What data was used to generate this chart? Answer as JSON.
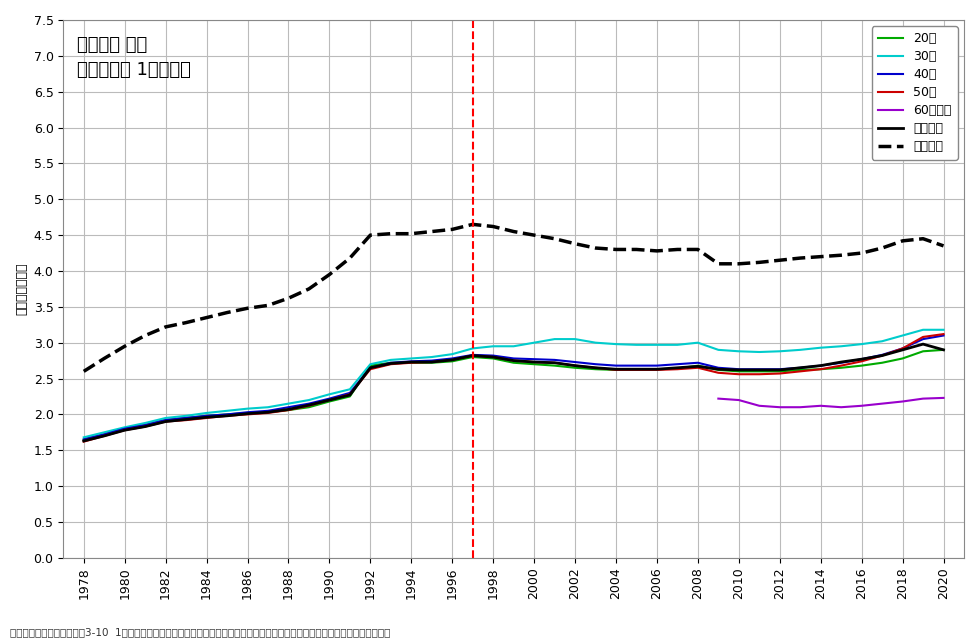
{
  "title": "平均給与 女性\n年齢階層別 1年勤続者",
  "ylabel": "金額［百万円］",
  "footnote": "「民間給与実態統計調査」3-10  1年勤続者の年齢階層別給与所得者数・給与総額・平均給与のうち、年齢階層別の平均給与の数値",
  "vline_x": 1997,
  "ylim": [
    0.0,
    7.5
  ],
  "yticks": [
    0.0,
    0.5,
    1.0,
    1.5,
    2.0,
    2.5,
    3.0,
    3.5,
    4.0,
    4.5,
    5.0,
    5.5,
    6.0,
    6.5,
    7.0,
    7.5
  ],
  "years": [
    1978,
    1979,
    1980,
    1981,
    1982,
    1983,
    1984,
    1985,
    1986,
    1987,
    1988,
    1989,
    1990,
    1991,
    1992,
    1993,
    1994,
    1995,
    1996,
    1997,
    1998,
    1999,
    2000,
    2001,
    2002,
    2003,
    2004,
    2005,
    2006,
    2007,
    2008,
    2009,
    2010,
    2011,
    2012,
    2013,
    2014,
    2015,
    2016,
    2017,
    2018,
    2019,
    2020
  ],
  "series": {
    "20代": {
      "color": "#00AA00",
      "linestyle": "-",
      "linewidth": 1.5,
      "values": [
        1.65,
        1.72,
        1.8,
        1.85,
        1.92,
        1.95,
        1.98,
        2.0,
        2.02,
        2.03,
        2.06,
        2.1,
        2.18,
        2.25,
        2.68,
        2.72,
        2.72,
        2.72,
        2.74,
        2.8,
        2.78,
        2.72,
        2.7,
        2.68,
        2.65,
        2.63,
        2.62,
        2.62,
        2.63,
        2.64,
        2.68,
        2.62,
        2.6,
        2.6,
        2.6,
        2.62,
        2.63,
        2.65,
        2.68,
        2.72,
        2.78,
        2.88,
        2.9
      ]
    },
    "30代": {
      "color": "#00CCCC",
      "linestyle": "-",
      "linewidth": 1.5,
      "values": [
        1.68,
        1.75,
        1.82,
        1.88,
        1.95,
        1.98,
        2.02,
        2.05,
        2.08,
        2.1,
        2.15,
        2.2,
        2.28,
        2.35,
        2.7,
        2.76,
        2.78,
        2.8,
        2.84,
        2.92,
        2.95,
        2.95,
        3.0,
        3.05,
        3.05,
        3.0,
        2.98,
        2.97,
        2.97,
        2.97,
        3.0,
        2.9,
        2.88,
        2.87,
        2.88,
        2.9,
        2.93,
        2.95,
        2.98,
        3.02,
        3.1,
        3.18,
        3.18
      ]
    },
    "40代": {
      "color": "#0000CC",
      "linestyle": "-",
      "linewidth": 1.5,
      "values": [
        1.65,
        1.72,
        1.8,
        1.85,
        1.92,
        1.95,
        1.98,
        2.0,
        2.03,
        2.05,
        2.1,
        2.15,
        2.22,
        2.3,
        2.65,
        2.72,
        2.74,
        2.75,
        2.78,
        2.83,
        2.82,
        2.78,
        2.77,
        2.76,
        2.73,
        2.7,
        2.68,
        2.68,
        2.68,
        2.7,
        2.72,
        2.65,
        2.63,
        2.63,
        2.63,
        2.65,
        2.68,
        2.72,
        2.77,
        2.83,
        2.92,
        3.05,
        3.1
      ]
    },
    "50代": {
      "color": "#CC0000",
      "linestyle": "-",
      "linewidth": 1.5,
      "values": [
        1.62,
        1.7,
        1.78,
        1.83,
        1.9,
        1.92,
        1.95,
        1.98,
        2.0,
        2.02,
        2.06,
        2.12,
        2.2,
        2.28,
        2.63,
        2.7,
        2.72,
        2.73,
        2.76,
        2.82,
        2.8,
        2.75,
        2.73,
        2.72,
        2.68,
        2.65,
        2.62,
        2.62,
        2.62,
        2.63,
        2.65,
        2.58,
        2.56,
        2.56,
        2.57,
        2.6,
        2.63,
        2.68,
        2.74,
        2.82,
        2.92,
        3.08,
        3.12
      ]
    },
    "60歳以上": {
      "color": "#9900CC",
      "linestyle": "-",
      "linewidth": 1.5,
      "values": [
        null,
        null,
        null,
        null,
        null,
        null,
        null,
        null,
        null,
        null,
        null,
        null,
        null,
        null,
        null,
        null,
        null,
        null,
        null,
        null,
        null,
        null,
        null,
        null,
        null,
        null,
        null,
        null,
        null,
        null,
        null,
        2.22,
        2.2,
        2.12,
        2.1,
        2.1,
        2.12,
        2.1,
        2.12,
        2.15,
        2.18,
        2.22,
        2.23
      ]
    },
    "女性合計": {
      "color": "#000000",
      "linestyle": "-",
      "linewidth": 2.0,
      "values": [
        1.63,
        1.7,
        1.78,
        1.83,
        1.9,
        1.93,
        1.96,
        1.98,
        2.01,
        2.03,
        2.07,
        2.13,
        2.2,
        2.27,
        2.65,
        2.71,
        2.73,
        2.73,
        2.76,
        2.82,
        2.8,
        2.75,
        2.73,
        2.72,
        2.68,
        2.65,
        2.63,
        2.63,
        2.63,
        2.65,
        2.67,
        2.63,
        2.62,
        2.62,
        2.62,
        2.65,
        2.68,
        2.73,
        2.77,
        2.82,
        2.9,
        2.98,
        2.9
      ]
    },
    "男女合計": {
      "color": "#000000",
      "linestyle": "--",
      "linewidth": 2.5,
      "values": [
        2.6,
        2.78,
        2.95,
        3.1,
        3.22,
        3.28,
        3.35,
        3.42,
        3.48,
        3.52,
        3.62,
        3.75,
        3.95,
        4.18,
        4.5,
        4.52,
        4.52,
        4.55,
        4.58,
        4.65,
        4.62,
        4.55,
        4.5,
        4.45,
        4.38,
        4.32,
        4.3,
        4.3,
        4.28,
        4.3,
        4.3,
        4.1,
        4.1,
        4.12,
        4.15,
        4.18,
        4.2,
        4.22,
        4.25,
        4.32,
        4.42,
        4.45,
        4.35
      ]
    }
  },
  "legend_labels": [
    "20代",
    "30代",
    "40代",
    "50代",
    "60歳以上",
    "女性合計",
    "男女合計"
  ],
  "xtick_years": [
    1978,
    1980,
    1982,
    1984,
    1986,
    1988,
    1990,
    1992,
    1994,
    1996,
    1998,
    2000,
    2002,
    2004,
    2006,
    2008,
    2010,
    2012,
    2014,
    2016,
    2018,
    2020
  ],
  "background_color": "#FFFFFF",
  "grid_color": "#BBBBBB",
  "title_fontsize": 13,
  "axis_fontsize": 9,
  "ylabel_fontsize": 9,
  "legend_fontsize": 9,
  "footnote_fontsize": 7.5
}
